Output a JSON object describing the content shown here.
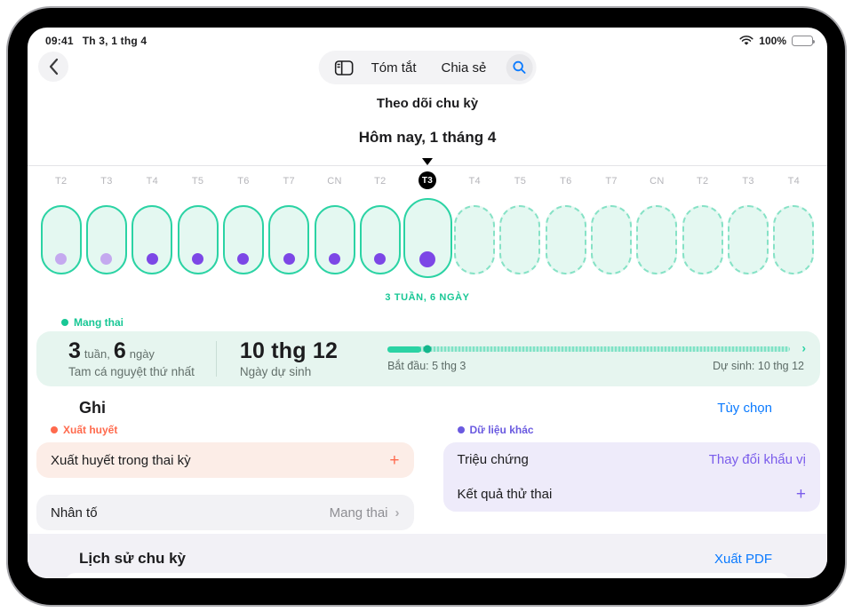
{
  "status_bar": {
    "time": "09:41",
    "date": "Th 3, 1 thg 4",
    "battery": "100%"
  },
  "nav": {
    "title": "Theo dõi chu kỳ",
    "tab_summary": "Tóm tắt",
    "tab_share": "Chia sẻ"
  },
  "calendar": {
    "header": "Hôm nay, 1 tháng 4",
    "caption": "3 TUẦN, 6 NGÀY",
    "days": [
      {
        "label": "T2",
        "state": "past",
        "dot": "light"
      },
      {
        "label": "T3",
        "state": "past",
        "dot": "light"
      },
      {
        "label": "T4",
        "state": "past",
        "dot": "dark"
      },
      {
        "label": "T5",
        "state": "past",
        "dot": "dark"
      },
      {
        "label": "T6",
        "state": "past",
        "dot": "dark"
      },
      {
        "label": "T7",
        "state": "past",
        "dot": "dark"
      },
      {
        "label": "CN",
        "state": "past",
        "dot": "dark"
      },
      {
        "label": "T2",
        "state": "past",
        "dot": "dark"
      },
      {
        "label": "T3",
        "state": "selected",
        "dot": "dark"
      },
      {
        "label": "T4",
        "state": "future",
        "dot": "none"
      },
      {
        "label": "T5",
        "state": "future",
        "dot": "none"
      },
      {
        "label": "T6",
        "state": "future",
        "dot": "none"
      },
      {
        "label": "T7",
        "state": "future",
        "dot": "none"
      },
      {
        "label": "CN",
        "state": "future",
        "dot": "none"
      },
      {
        "label": "T2",
        "state": "future",
        "dot": "none"
      },
      {
        "label": "T3",
        "state": "future",
        "dot": "none"
      },
      {
        "label": "T4",
        "state": "future",
        "dot": "none"
      }
    ]
  },
  "pregnancy": {
    "legend": "Mang thai",
    "weeks_value": "3",
    "weeks_unit": "tuần,",
    "days_value": "6",
    "days_unit": "ngày",
    "trimester": "Tam cá nguyệt thứ nhất",
    "due_date": "10 thg 12",
    "due_label": "Ngày dự sinh",
    "progress": {
      "percent": 8,
      "start_label": "Bắt đầu: 5 thg 3",
      "end_label": "Dự sinh: 10 thg 12",
      "chevron": "›"
    }
  },
  "log": {
    "heading": "Ghi",
    "options_link": "Tùy chọn",
    "bleeding_section": "Xuất huyết",
    "bleeding_row": "Xuất huyết trong thai kỳ",
    "bleeding_add": "+",
    "factors_row": "Nhân tố",
    "factors_value": "Mang thai",
    "factors_chevron": "›",
    "other_section": "Dữ liệu khác",
    "symptoms_row": "Triệu chứng",
    "symptoms_value": "Thay đổi khẩu vị",
    "test_row": "Kết quả thử thai",
    "test_add": "+"
  },
  "history": {
    "heading": "Lịch sử chu kỳ",
    "export_link": "Xuất PDF"
  },
  "colors": {
    "teal": "#2bd3a4",
    "teal_text": "#18c795",
    "purple_dark": "#7c47e6",
    "purple_light": "#c4a9ef",
    "coral": "#ff6a4d",
    "blue_link": "#0a7aff"
  }
}
